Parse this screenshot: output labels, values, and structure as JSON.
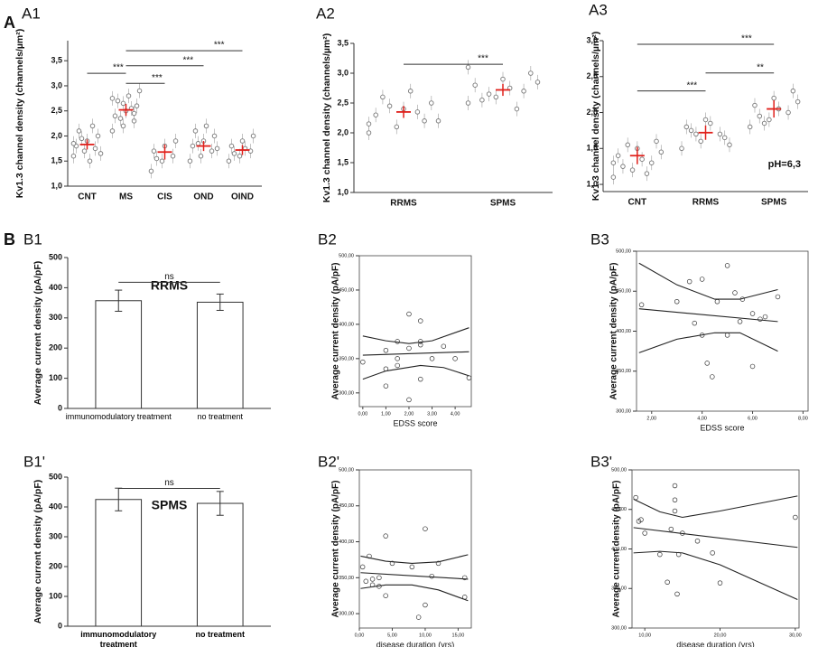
{
  "sections": [
    "A",
    "B"
  ],
  "chart_data": [
    {
      "type": "strip",
      "panel": "A1",
      "ylabel": "Kv1.3 channel density (channels/µm²)",
      "categories": [
        "CNT",
        "MS",
        "CIS",
        "OND",
        "OIND"
      ],
      "ylim": [
        1.0,
        3.9
      ],
      "yticks": [
        {
          "value": 1,
          "label": "1,0"
        },
        {
          "value": 1.5,
          "label": "1,5"
        },
        {
          "value": 2,
          "label": "2,0"
        },
        {
          "value": 2.5,
          "label": "2,5"
        },
        {
          "value": 3,
          "label": "3,0"
        },
        {
          "value": 3.5,
          "label": "3,5"
        }
      ],
      "groups": [
        {
          "points": [
            1.6,
            1.7,
            1.75,
            1.8,
            1.9,
            2.0,
            2.1,
            1.5,
            1.65,
            1.95,
            2.2,
            1.85
          ],
          "mean": 1.83,
          "error": 0.1
        },
        {
          "points": [
            2.1,
            2.2,
            2.3,
            2.4,
            2.5,
            2.6,
            2.7,
            2.8,
            2.9,
            2.35,
            2.55,
            2.75,
            2.65,
            2.45
          ],
          "mean": 2.52,
          "error": 0.12
        },
        {
          "points": [
            1.3,
            1.5,
            1.6,
            1.7,
            1.8,
            1.9,
            1.55
          ],
          "mean": 1.68,
          "error": 0.15
        },
        {
          "points": [
            1.5,
            1.6,
            1.7,
            1.8,
            1.9,
            2.0,
            2.1,
            2.2,
            1.75,
            1.85
          ],
          "mean": 1.8,
          "error": 0.1
        },
        {
          "points": [
            1.5,
            1.6,
            1.7,
            1.8,
            1.9,
            2.0,
            1.65,
            1.75
          ],
          "mean": 1.72,
          "error": 0.1
        }
      ],
      "mean_color": "#e0201b",
      "point_color": "#777777",
      "brackets": [
        {
          "label": "***",
          "start": "CNT",
          "end": "MS",
          "y": 3.25
        },
        {
          "label": "***",
          "start": "MS",
          "end": "CIS",
          "y": 3.05
        },
        {
          "label": "***",
          "start": "MS",
          "end": "OND",
          "y": 3.4
        },
        {
          "label": "***",
          "start": "MS",
          "end": "OIND",
          "y": 3.7
        }
      ]
    },
    {
      "type": "strip",
      "panel": "A2",
      "ylabel": "Kv1.3 channel density (channels/µm²)",
      "categories": [
        "RRMS",
        "SPMS"
      ],
      "ylim": [
        1.0,
        3.5
      ],
      "yticks": [
        {
          "value": 1,
          "label": "1,0"
        },
        {
          "value": 1.5,
          "label": "1,5"
        },
        {
          "value": 2,
          "label": "2,0"
        },
        {
          "value": 2.5,
          "label": "2,5"
        },
        {
          "value": 3,
          "label": "3,0"
        },
        {
          "value": 3.5,
          "label": "3,5"
        }
      ],
      "groups": [
        {
          "points": [
            2.0,
            2.1,
            2.2,
            2.3,
            2.4,
            2.5,
            2.6,
            2.7,
            2.2,
            2.45,
            2.35,
            2.15
          ],
          "mean": 2.35,
          "error": 0.1
        },
        {
          "points": [
            2.5,
            2.6,
            2.7,
            2.8,
            2.9,
            3.0,
            2.55,
            2.75,
            2.85,
            2.65,
            2.4,
            3.1
          ],
          "mean": 2.72,
          "error": 0.1
        }
      ],
      "mean_color": "#e0201b",
      "point_color": "#777777",
      "brackets": [
        {
          "label": "***",
          "start": "RRMS",
          "end": "SPMS",
          "y": 3.15
        }
      ]
    },
    {
      "type": "strip",
      "panel": "A3",
      "ylabel": "Kv1.3 channel density (channels/µm²)",
      "categories": [
        "CNT",
        "RRMS",
        "SPMS"
      ],
      "ylim": [
        0.9,
        3.0
      ],
      "yticks": [
        {
          "value": 1,
          "label": "1,0"
        },
        {
          "value": 1.5,
          "label": "1,5"
        },
        {
          "value": 2,
          "label": "2,0"
        },
        {
          "value": 2.5,
          "label": "2,5"
        },
        {
          "value": 3,
          "label": "3,0"
        }
      ],
      "groups": [
        {
          "points": [
            1.1,
            1.2,
            1.3,
            1.4,
            1.5,
            1.6,
            1.25,
            1.35,
            1.45,
            1.55,
            1.15,
            1.3
          ],
          "mean": 1.4,
          "error": 0.12
        },
        {
          "points": [
            1.5,
            1.6,
            1.7,
            1.8,
            1.9,
            1.65,
            1.75,
            1.85,
            1.55,
            1.7
          ],
          "mean": 1.72,
          "error": 0.1
        },
        {
          "points": [
            1.8,
            1.9,
            2.0,
            2.1,
            2.2,
            2.3,
            1.95,
            2.05,
            2.15,
            1.85
          ],
          "mean": 2.05,
          "error": 0.12
        }
      ],
      "mean_color": "#e0201b",
      "point_color": "#777777",
      "annotation": "pH=6,3",
      "brackets": [
        {
          "label": "***",
          "start": "CNT",
          "end": "SPMS",
          "y": 2.95
        },
        {
          "label": "***",
          "start": "CNT",
          "end": "RRMS",
          "y": 2.3
        },
        {
          "label": "**",
          "start": "RRMS",
          "end": "SPMS",
          "y": 2.55
        }
      ]
    },
    {
      "type": "bar",
      "panel": "B1",
      "title": "RRMS",
      "ylabel": "Average current density (pA/pF)",
      "categories": [
        "immunomodulatory treatment",
        "no treatment"
      ],
      "values": [
        357,
        352
      ],
      "errors": [
        35,
        27
      ],
      "color": "#ffffff",
      "ylim": [
        0,
        500
      ],
      "yticks": [
        0,
        100,
        200,
        300,
        400,
        500
      ],
      "brackets": [
        {
          "label": "ns",
          "start": "immunomodulatory treatment",
          "end": "no treatment",
          "y": 418
        }
      ]
    },
    {
      "type": "scatter",
      "panel": "B2",
      "ylabel": "Average current density (pA/pF)",
      "xlabel": "EDSS score",
      "x": [
        0,
        1,
        1,
        1,
        1.5,
        1.5,
        2,
        2,
        2,
        2.5,
        2.5,
        2.5,
        2.5,
        3,
        3.5,
        4,
        4.6,
        1.5
      ],
      "y": [
        345,
        362,
        335,
        310,
        350,
        340,
        415,
        365,
        290,
        370,
        375,
        405,
        320,
        350,
        368,
        350,
        322,
        375
      ],
      "xlim": [
        -0.15,
        4.7
      ],
      "ylim": [
        280,
        500
      ],
      "xticks": [
        {
          "value": 0,
          "label": "0,00"
        },
        {
          "value": 1,
          "label": "1,00"
        },
        {
          "value": 2,
          "label": "2,00"
        },
        {
          "value": 3,
          "label": "3,00"
        },
        {
          "value": 4,
          "label": "4,00"
        }
      ],
      "yticks": [
        {
          "value": 300,
          "label": "300,00"
        },
        {
          "value": 350,
          "label": "350,00"
        },
        {
          "value": 400,
          "label": "400,00"
        },
        {
          "value": 450,
          "label": "450,00"
        },
        {
          "value": 500,
          "label": "500,00"
        }
      ],
      "curves": [
        {
          "x": [
            0,
            4.6
          ],
          "y": [
            355,
            360
          ]
        },
        {
          "x": [
            0,
            1,
            2,
            3,
            4.6
          ],
          "y": [
            383,
            376,
            372,
            376,
            395
          ]
        },
        {
          "x": [
            0,
            1,
            2.5,
            3.5,
            4.6
          ],
          "y": [
            320,
            332,
            340,
            337,
            325
          ]
        }
      ]
    },
    {
      "type": "scatter",
      "panel": "B3",
      "ylabel": "Average current density (pA/pF)",
      "xlabel": "EDSS score",
      "x": [
        1.6,
        3,
        3.5,
        3.7,
        4,
        4,
        4.2,
        4.4,
        4.6,
        5,
        5,
        5.3,
        5.5,
        6,
        6,
        6.3,
        6.5,
        7,
        5.6
      ],
      "y": [
        433,
        437,
        462,
        410,
        465,
        395,
        360,
        343,
        437,
        482,
        395,
        448,
        412,
        422,
        356,
        415,
        418,
        443,
        440
      ],
      "xlim": [
        1.4,
        8.2
      ],
      "ylim": [
        300,
        500
      ],
      "xticks": [
        {
          "value": 2,
          "label": "2,00"
        },
        {
          "value": 4,
          "label": "4,00"
        },
        {
          "value": 6,
          "label": "6,00"
        },
        {
          "value": 8,
          "label": "8,00"
        }
      ],
      "yticks": [
        {
          "value": 300,
          "label": "300,00"
        },
        {
          "value": 350,
          "label": "350,00"
        },
        {
          "value": 400,
          "label": "400,00"
        },
        {
          "value": 450,
          "label": "450,00"
        },
        {
          "value": 500,
          "label": "500,00"
        }
      ],
      "curves": [
        {
          "x": [
            1.5,
            7
          ],
          "y": [
            428,
            412
          ]
        },
        {
          "x": [
            1.5,
            3,
            4.5,
            5.5,
            7
          ],
          "y": [
            485,
            458,
            440,
            440,
            452
          ]
        },
        {
          "x": [
            1.5,
            3,
            4.5,
            5.5,
            7
          ],
          "y": [
            373,
            390,
            398,
            398,
            375
          ]
        }
      ]
    },
    {
      "type": "bar",
      "panel": "B1'",
      "title": "SPMS",
      "ylabel": "Average current density (pA/pF)",
      "categories": [
        "immunomodulatory treatment",
        "no treatment"
      ],
      "values": [
        425,
        412
      ],
      "errors": [
        38,
        40
      ],
      "color": "#ffffff",
      "ylim": [
        0,
        500
      ],
      "yticks": [
        0,
        100,
        200,
        300,
        400,
        500
      ],
      "brackets": [
        {
          "label": "ns",
          "start": "immunomodulatory treatment",
          "end": "no treatment",
          "y": 462
        }
      ]
    },
    {
      "type": "scatter",
      "panel": "B2'",
      "ylabel": "Average current density (pA/pF)",
      "xlabel": "disease duration (yrs)",
      "x": [
        0.5,
        1,
        1.5,
        2,
        3,
        3,
        4,
        4,
        5,
        8,
        9,
        10,
        10,
        11,
        12,
        16,
        16,
        2
      ],
      "y": [
        365,
        345,
        380,
        348,
        350,
        338,
        408,
        325,
        370,
        365,
        295,
        418,
        312,
        352,
        370,
        350,
        323,
        340
      ],
      "xlim": [
        0,
        17
      ],
      "ylim": [
        280,
        500
      ],
      "xticks": [
        {
          "value": 0,
          "label": "0,00"
        },
        {
          "value": 5,
          "label": "5,00"
        },
        {
          "value": 10,
          "label": "10,00"
        },
        {
          "value": 15,
          "label": "15,00"
        }
      ],
      "yticks": [
        {
          "value": 300,
          "label": "300,00"
        },
        {
          "value": 350,
          "label": "350,00"
        },
        {
          "value": 400,
          "label": "400,00"
        },
        {
          "value": 450,
          "label": "450,00"
        },
        {
          "value": 500,
          "label": "500,00"
        }
      ],
      "curves": [
        {
          "x": [
            0.2,
            16.5
          ],
          "y": [
            357,
            348
          ]
        },
        {
          "x": [
            0.2,
            4,
            8,
            12,
            16.5
          ],
          "y": [
            380,
            373,
            370,
            372,
            382
          ]
        },
        {
          "x": [
            0.2,
            4,
            8,
            12,
            16.5
          ],
          "y": [
            335,
            340,
            340,
            333,
            318
          ]
        }
      ]
    },
    {
      "type": "scatter",
      "panel": "B3'",
      "ylabel": "Average current density (pA/pF)",
      "xlabel": "disease duration (yrs)",
      "x": [
        8.8,
        9.2,
        9.5,
        10,
        12,
        13,
        14,
        14,
        14,
        14.3,
        14.5,
        15,
        17,
        19,
        20,
        30,
        13.5
      ],
      "y": [
        465,
        435,
        437,
        420,
        393,
        358,
        462,
        480,
        448,
        343,
        393,
        420,
        410,
        395,
        357,
        440,
        425
      ],
      "xlim": [
        8.3,
        30.5
      ],
      "ylim": [
        300,
        500
      ],
      "xticks": [
        {
          "value": 10,
          "label": "10,00"
        },
        {
          "value": 20,
          "label": "20,00"
        },
        {
          "value": 30,
          "label": "30,00"
        }
      ],
      "yticks": [
        {
          "value": 300,
          "label": "300,00"
        },
        {
          "value": 350,
          "label": "350,00"
        },
        {
          "value": 400,
          "label": "400,00"
        },
        {
          "value": 450,
          "label": "450,00"
        },
        {
          "value": 500,
          "label": "500,00"
        }
      ],
      "curves": [
        {
          "x": [
            8.5,
            30.3
          ],
          "y": [
            427,
            402
          ]
        },
        {
          "x": [
            8.5,
            12,
            15,
            20,
            30.3
          ],
          "y": [
            463,
            447,
            440,
            448,
            467
          ]
        },
        {
          "x": [
            8.5,
            12,
            15,
            20,
            30.3
          ],
          "y": [
            395,
            397,
            395,
            380,
            336
          ]
        }
      ]
    }
  ]
}
